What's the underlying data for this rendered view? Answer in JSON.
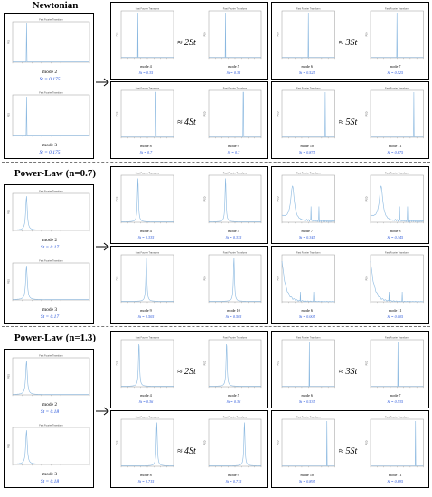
{
  "plot_title": "Fast Fourier Transform",
  "axis_y": "PSD",
  "panel_color": "#8ab8e0",
  "st_color": "#1f4ed8",
  "sections": [
    {
      "title": "Newtonian",
      "base": [
        {
          "mode": "mode 2",
          "st": "St = 0.175",
          "peak": 0.18,
          "shape": "spike"
        },
        {
          "mode": "mode 3",
          "st": "St = 0.175",
          "peak": 0.18,
          "shape": "spike"
        }
      ],
      "groups": [
        {
          "approx": "≈ 2St",
          "panels": [
            {
              "mode": "mode 4",
              "st": "St = 0.35",
              "peak": 0.32,
              "shape": "spike"
            },
            {
              "mode": "mode 5",
              "st": "St = 0.35",
              "peak": 0.32,
              "shape": "spike"
            }
          ]
        },
        {
          "approx": "≈ 3St",
          "panels": [
            {
              "mode": "mode 6",
              "st": "St = 0.525",
              "peak": 0.5,
              "shape": "spike"
            },
            {
              "mode": "mode 7",
              "st": "St = 0.525",
              "peak": 0.5,
              "shape": "spike"
            }
          ]
        },
        {
          "approx": "≈ 4St",
          "panels": [
            {
              "mode": "mode 8",
              "st": "St = 0.7",
              "peak": 0.66,
              "shape": "spike"
            },
            {
              "mode": "mode 9",
              "st": "St = 0.7",
              "peak": 0.66,
              "shape": "spike"
            }
          ]
        },
        {
          "approx": "≈ 5St",
          "panels": [
            {
              "mode": "mode 10",
              "st": "St = 0.875",
              "peak": 0.82,
              "shape": "spike"
            },
            {
              "mode": "mode 11",
              "st": "St = 0.875",
              "peak": 0.82,
              "shape": "spike"
            }
          ]
        }
      ]
    },
    {
      "title": "Power-Law (n=0.7)",
      "base": [
        {
          "mode": "mode 2",
          "st": "St = 0.17",
          "peak": 0.18,
          "shape": "lorentz"
        },
        {
          "mode": "mode 3",
          "st": "St = 0.17",
          "peak": 0.18,
          "shape": "lorentz"
        }
      ],
      "groups": [
        {
          "approx": "",
          "panels": [
            {
              "mode": "mode 4",
              "st": "St = 0.335",
              "peak": 0.32,
              "shape": "lorentz"
            },
            {
              "mode": "mode 5",
              "st": "St = 0.335",
              "peak": 0.32,
              "shape": "lorentz"
            }
          ]
        },
        {
          "approx": "",
          "panels": [
            {
              "mode": "mode 7",
              "st": "St = 0.345",
              "peak": 0.2,
              "shape": "noisy"
            },
            {
              "mode": "mode 8",
              "st": "St = 0.345",
              "peak": 0.2,
              "shape": "noisy"
            }
          ]
        },
        {
          "approx": "",
          "panels": [
            {
              "mode": "mode 9",
              "st": "St = 0.505",
              "peak": 0.48,
              "shape": "lorentz"
            },
            {
              "mode": "mode 10",
              "st": "St = 0.505",
              "peak": 0.48,
              "shape": "lorentz"
            }
          ]
        },
        {
          "approx": "",
          "panels": [
            {
              "mode": "mode 6",
              "st": "St = 0.005",
              "peak": 0.03,
              "shape": "decay"
            },
            {
              "mode": "mode 11",
              "st": "St = 0.005",
              "peak": 0.03,
              "shape": "decay"
            }
          ]
        }
      ]
    },
    {
      "title": "Power-Law (n=1.3)",
      "base": [
        {
          "mode": "mode 2",
          "st": "St = 0.18",
          "peak": 0.18,
          "shape": "lorentz"
        },
        {
          "mode": "mode 3",
          "st": "St = 0.18",
          "peak": 0.18,
          "shape": "lorentz"
        }
      ],
      "groups": [
        {
          "approx": "≈ 2St",
          "panels": [
            {
              "mode": "mode 4",
              "st": "St = 0.36",
              "peak": 0.34,
              "shape": "lorentz"
            },
            {
              "mode": "mode 5",
              "st": "St = 0.36",
              "peak": 0.34,
              "shape": "lorentz"
            }
          ]
        },
        {
          "approx": "≈ 3St",
          "panels": [
            {
              "mode": "mode 6",
              "st": "St = 0.535",
              "peak": 0.52,
              "shape": "spike"
            },
            {
              "mode": "mode 7",
              "st": "St = 0.535",
              "peak": 0.52,
              "shape": "spike"
            }
          ]
        },
        {
          "approx": "≈ 4St",
          "panels": [
            {
              "mode": "mode 8",
              "st": "St = 0.715",
              "peak": 0.68,
              "shape": "lorentz"
            },
            {
              "mode": "mode 9",
              "st": "St = 0.715",
              "peak": 0.68,
              "shape": "lorentz"
            }
          ]
        },
        {
          "approx": "≈ 5St",
          "panels": [
            {
              "mode": "mode 10",
              "st": "St = 0.895",
              "peak": 0.85,
              "shape": "spike"
            },
            {
              "mode": "mode 11",
              "st": "St = 0.895",
              "peak": 0.85,
              "shape": "spike"
            }
          ]
        }
      ]
    }
  ]
}
